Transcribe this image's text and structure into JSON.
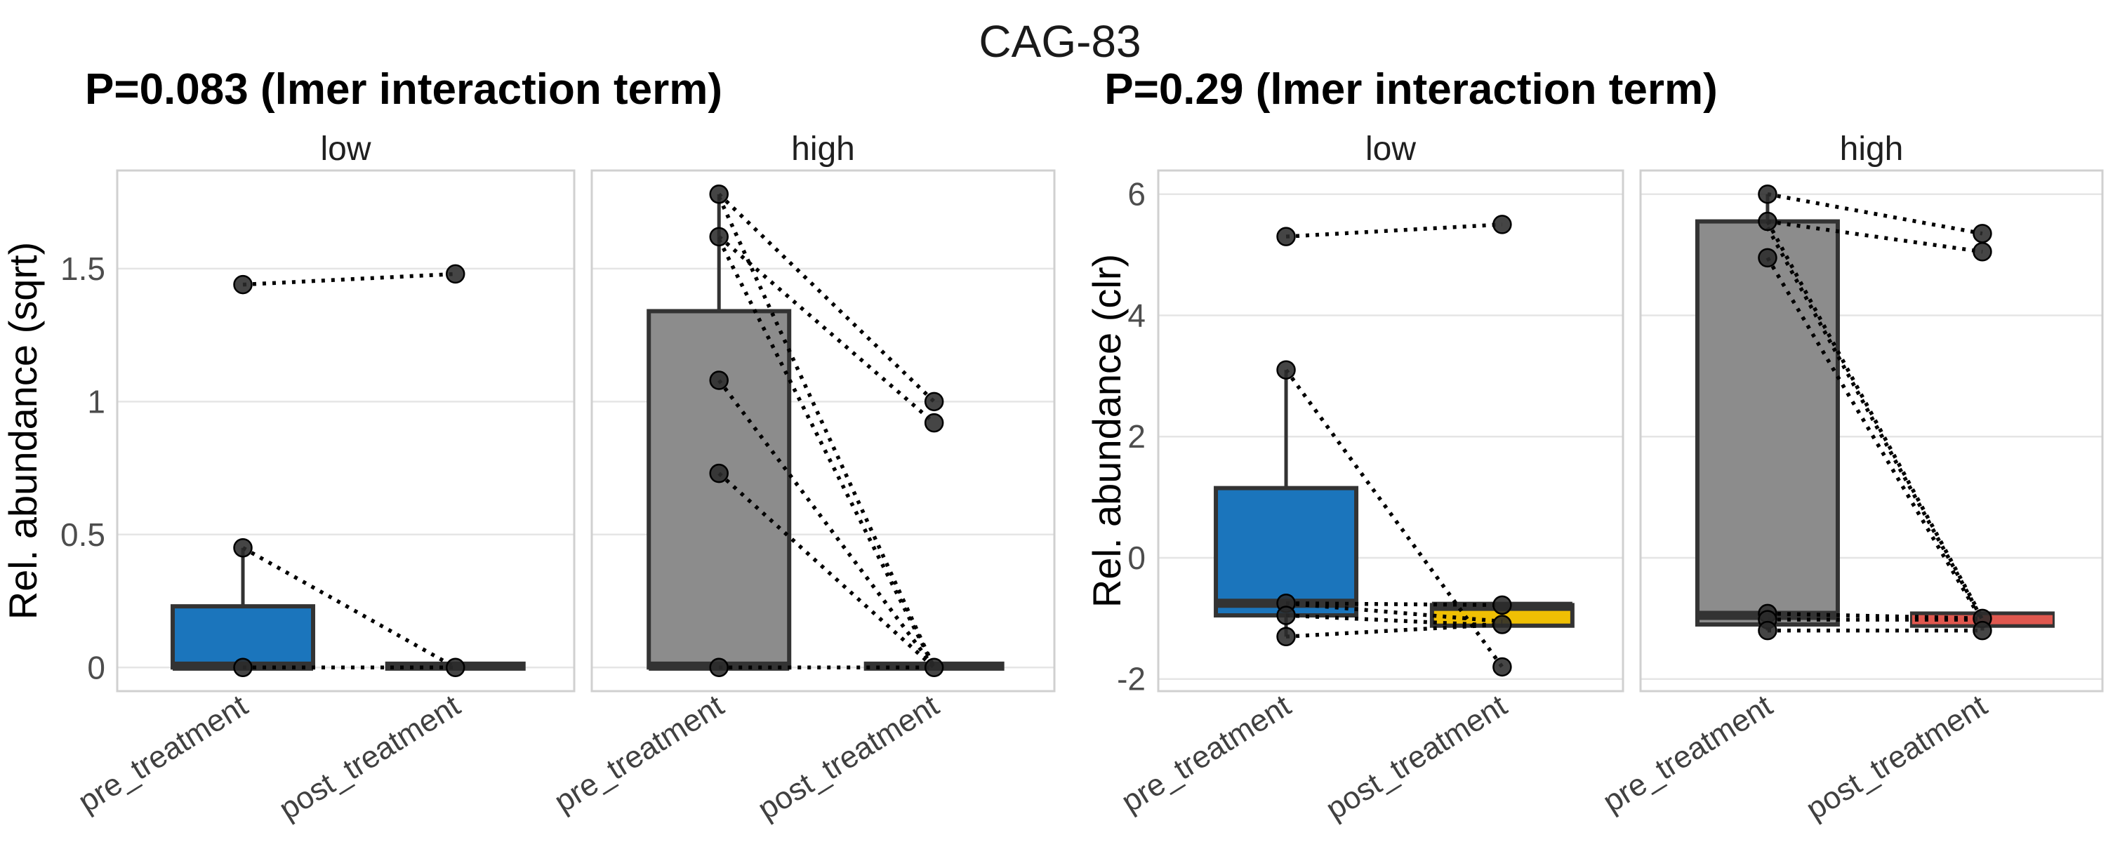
{
  "chart_data": {
    "type": "box",
    "title": "CAG-83",
    "grid": "major-horizontal",
    "legend": "none",
    "x_categories": [
      "pre_treatment",
      "post_treatment"
    ],
    "plots": [
      {
        "subtitle": "P=0.083 (lmer interaction term)",
        "ylabel": "Rel. abundance (sqrt)",
        "y_ticks": [
          0,
          0.5,
          1,
          1.5
        ],
        "y_tick_labels": [
          "0",
          "0.5",
          "1",
          "1.5"
        ],
        "y_domain": [
          -0.089,
          1.869
        ],
        "facets": [
          {
            "label": "low",
            "boxes": {
              "pre": {
                "color": "#1B75BC",
                "q1": 0,
                "q3": 0.23,
                "median": 0.005,
                "whisker_low": 0,
                "whisker_high": 0.45
              },
              "post": {
                "color": "#1B75BC",
                "q1": 0,
                "q3": 0,
                "median": 0.005,
                "whisker_low": 0,
                "whisker_high": 0
              }
            },
            "points": {
              "pre": [
                1.44,
                0.45,
                0
              ],
              "post": [
                1.48,
                0
              ]
            },
            "pairs": [
              [
                1.44,
                1.48
              ],
              [
                0.45,
                0
              ],
              [
                0,
                0
              ]
            ]
          },
          {
            "label": "high",
            "boxes": {
              "pre": {
                "color": "#8C8C8C",
                "q1": 0,
                "q3": 1.34,
                "median": 0.005,
                "whisker_low": 0,
                "whisker_high": 1.78
              },
              "post": {
                "color": "#8C8C8C",
                "q1": 0,
                "q3": 0,
                "median": 0.005,
                "whisker_low": 0,
                "whisker_high": 0
              }
            },
            "points": {
              "pre": [
                1.78,
                1.62,
                1.08,
                0.73,
                0
              ],
              "post": [
                1.0,
                0.92,
                0
              ]
            },
            "pairs": [
              [
                1.78,
                1.0
              ],
              [
                1.62,
                0.92
              ],
              [
                1.77,
                0
              ],
              [
                1.61,
                0
              ],
              [
                1.08,
                0
              ],
              [
                0.73,
                0
              ],
              [
                0,
                0
              ]
            ]
          }
        ]
      },
      {
        "subtitle": "P=0.29 (lmer interaction term)",
        "ylabel": "Rel. abundance (clr)",
        "y_ticks": [
          -2,
          0,
          2,
          4,
          6
        ],
        "y_tick_labels": [
          "-2",
          "0",
          "2",
          "4",
          "6"
        ],
        "y_domain": [
          -2.2,
          6.39
        ],
        "facets": [
          {
            "label": "low",
            "boxes": {
              "pre": {
                "color": "#1B75BC",
                "q1": -0.95,
                "q3": 1.15,
                "median": -0.75,
                "whisker_low": -1.3,
                "whisker_high": 3.1
              },
              "post": {
                "color": "#EFBF04",
                "q1": -1.12,
                "q3": -0.78,
                "median": -0.8,
                "whisker_low": -1.12,
                "whisker_high": -0.78
              }
            },
            "points": {
              "pre": [
                5.3,
                3.1,
                -0.75,
                -0.95,
                -1.3
              ],
              "post": [
                5.5,
                -0.78,
                -1.1,
                -1.8
              ]
            },
            "pairs": [
              [
                5.3,
                5.5
              ],
              [
                3.1,
                -1.8
              ],
              [
                -0.75,
                -0.78
              ],
              [
                -0.75,
                -1.05
              ],
              [
                -0.95,
                -1.12
              ],
              [
                -1.3,
                -1.1
              ]
            ]
          },
          {
            "label": "high",
            "boxes": {
              "pre": {
                "color": "#8C8C8C",
                "q1": -1.1,
                "q3": 5.55,
                "median": -0.95,
                "whisker_low": -1.2,
                "whisker_high": 6.0
              },
              "post": {
                "color": "#3A3A3A",
                "q1": -1.12,
                "q3": -0.92,
                "median": -1.02,
                "median_color": "#E0584F",
                "whisker_low": -1.2,
                "whisker_high": -0.92
              }
            },
            "points": {
              "pre": [
                6.0,
                5.55,
                4.95,
                -0.92,
                -1.02,
                -1.2
              ],
              "post": [
                5.35,
                5.05,
                -1.0,
                -1.2
              ]
            },
            "pairs": [
              [
                6.0,
                5.35
              ],
              [
                5.55,
                5.05
              ],
              [
                5.55,
                -1.0
              ],
              [
                5.45,
                -1.02
              ],
              [
                4.95,
                -1.05
              ],
              [
                -0.92,
                -1.0
              ],
              [
                -1.02,
                -1.02
              ],
              [
                -1.2,
                -1.2
              ]
            ]
          }
        ]
      }
    ]
  },
  "style": {
    "accent_blue": "#1B75BC",
    "accent_gray": "#8C8C8C",
    "accent_yellow": "#EFBF04",
    "accent_red_median": "#E0584F",
    "box_stroke": "#333333",
    "point_fill": "#2B2B2B",
    "grid_color": "#E5E5E5",
    "panel_border": "#D0D0D0",
    "tick_label_color": "#4D4D4D",
    "x_label_color": "#404040",
    "facet_label_color": "#1F1F1F"
  }
}
